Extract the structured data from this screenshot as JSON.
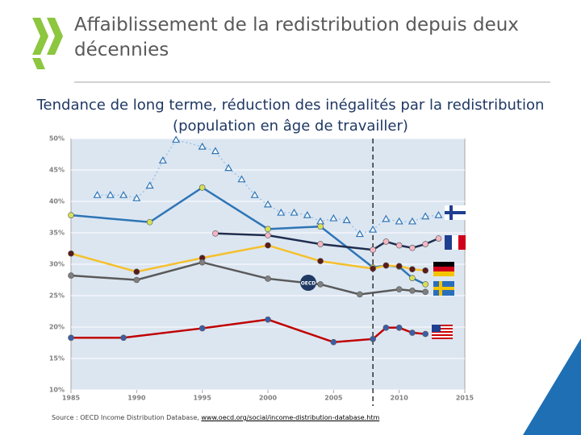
{
  "title": "Affaiblissement de la redistribution depuis deux décennies",
  "subtitle": "Tendance de long terme, réduction des inégalités par la redistribution (population en âge de travailler)",
  "source": "Source : OECD Income Distribution Database, ",
  "source_link": "www.oecd.org/social/income-distribution-database.htm",
  "chart_data": {
    "type": "line",
    "xlim": [
      1985,
      2015
    ],
    "xticks": [
      1985,
      1990,
      1995,
      2000,
      2005,
      2010,
      2015
    ],
    "ylim": [
      10,
      50
    ],
    "yticks": [
      {
        "value": 10,
        "label": "10%"
      },
      {
        "value": 15,
        "label": "15%"
      },
      {
        "value": 20,
        "label": "20%"
      },
      {
        "value": 25,
        "label": "25%"
      },
      {
        "value": 30,
        "label": "30%"
      },
      {
        "value": 35,
        "label": "35%"
      },
      {
        "value": 40,
        "label": "40%"
      },
      {
        "value": 45,
        "label": "45%"
      },
      {
        "value": 50,
        "label": "50%"
      }
    ],
    "grid": true,
    "reference_x": 2008,
    "series": [
      {
        "color": "#9dc3e6",
        "marker": "triangle",
        "marker_color": "#2e75b6",
        "dash": true,
        "x": [
          1987,
          1988,
          1989,
          1990,
          1991,
          1992,
          1993,
          1995,
          1996,
          1997,
          1998,
          1999,
          2000,
          2001,
          2002,
          2003,
          2004,
          2005,
          2006,
          2007,
          2008,
          2009,
          2010,
          2011,
          2012,
          2013
        ],
        "values": [
          41,
          41,
          41,
          40.5,
          42.5,
          46.5,
          49.8,
          48.7,
          48,
          45.3,
          43.5,
          41,
          39.5,
          38.2,
          38.2,
          37.8,
          36.8,
          37.3,
          37,
          34.8,
          35.5,
          37.2,
          36.8,
          36.8,
          37.6,
          37.8
        ]
      },
      {
        "color": "#2e75b6",
        "marker": "circle",
        "marker_color": "#d4e157",
        "x": [
          1985,
          1991,
          1995,
          2000,
          2004,
          2008,
          2009,
          2010,
          2011,
          2012
        ],
        "values": [
          37.8,
          36.7,
          42.2,
          35.6,
          36,
          29.5,
          29.8,
          29.6,
          27.8,
          26.8
        ]
      },
      {
        "color": "#1f2d4e",
        "marker": "circle",
        "marker_color": "#f4b6c2",
        "x": [
          1996,
          2000,
          2004,
          2008,
          2009,
          2010,
          2011,
          2012,
          2013
        ],
        "values": [
          34.9,
          34.6,
          33.2,
          32.3,
          33.6,
          33,
          32.6,
          33.2,
          34.1
        ]
      },
      {
        "color": "#f5c02c",
        "marker": "circle",
        "marker_color": "#5a1a1a",
        "x": [
          1985,
          1990,
          1995,
          2000,
          2004,
          2008,
          2009,
          2010,
          2011,
          2012
        ],
        "values": [
          31.7,
          28.8,
          31,
          33,
          30.5,
          29.3,
          29.8,
          29.7,
          29.2,
          29
        ]
      },
      {
        "color": "#595959",
        "marker": "circle",
        "marker_color": "#7f7f7f",
        "x": [
          1985,
          1990,
          1995,
          2000,
          2004,
          2007,
          2010,
          2011,
          2012
        ],
        "values": [
          28.2,
          27.5,
          30.3,
          27.7,
          26.8,
          25.2,
          26,
          25.8,
          25.6
        ]
      },
      {
        "color": "#c00000",
        "marker": "circle",
        "marker_color": "#3a5fa8",
        "x": [
          1985,
          1989,
          1995,
          2000,
          2005,
          2008,
          2009,
          2010,
          2011,
          2012
        ],
        "values": [
          18.3,
          18.3,
          19.8,
          21.2,
          17.6,
          18.1,
          19.9,
          19.9,
          19.1,
          18.9
        ]
      }
    ]
  }
}
